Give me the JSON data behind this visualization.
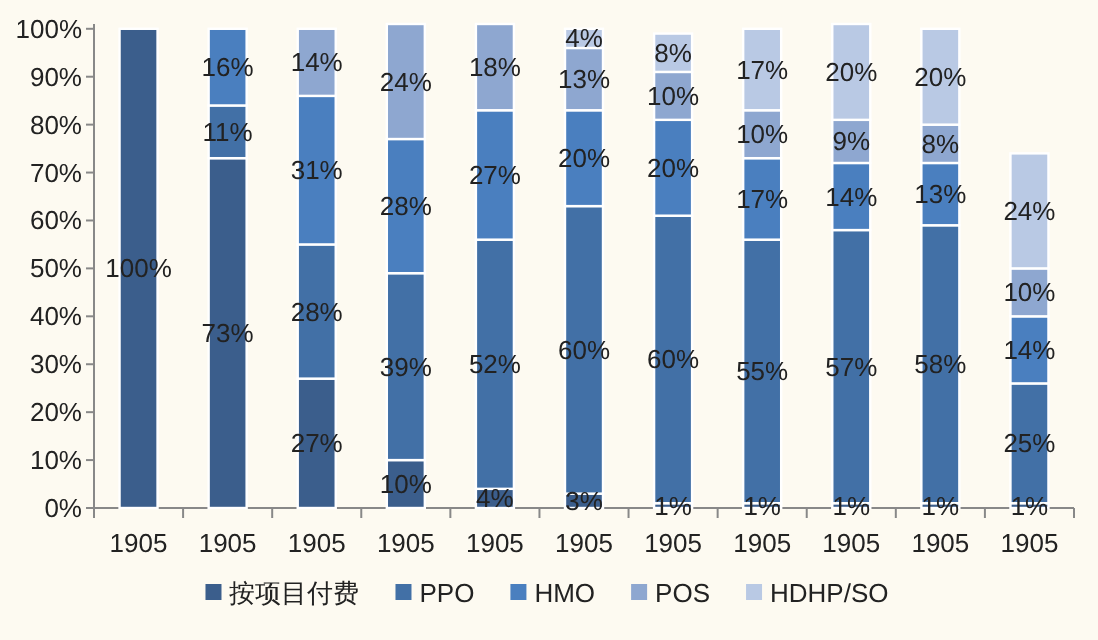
{
  "chart_data": {
    "type": "bar",
    "stacked": true,
    "categories": [
      "1905",
      "1905",
      "1905",
      "1905",
      "1905",
      "1905",
      "1905",
      "1905",
      "1905",
      "1905",
      "1905"
    ],
    "series": [
      {
        "name": "按项目付费",
        "color": "#3b5e8c",
        "values": [
          100,
          73,
          27,
          10,
          4,
          3,
          1,
          1,
          1,
          1,
          1
        ],
        "value_labels": [
          "100%",
          "73%",
          "27%",
          "10%",
          "4%",
          "3%",
          "1%",
          "1%",
          "1%",
          "1%",
          "1%"
        ]
      },
      {
        "name": "PPO",
        "color": "#4270a6",
        "values": [
          null,
          11,
          28,
          39,
          52,
          60,
          60,
          55,
          57,
          58,
          25
        ],
        "value_labels": [
          null,
          "11%",
          "28%",
          "39%",
          "52%",
          "60%",
          "60%",
          "55%",
          "57%",
          "58%",
          "25%"
        ]
      },
      {
        "name": "HMO",
        "color": "#4a7fbf",
        "values": [
          null,
          16,
          31,
          28,
          27,
          20,
          20,
          17,
          14,
          13,
          14
        ],
        "value_labels": [
          null,
          "16%",
          "31%",
          "28%",
          "27%",
          "20%",
          "20%",
          "17%",
          "14%",
          "13%",
          "14%"
        ]
      },
      {
        "name": "POS",
        "color": "#8ea7d0",
        "values": [
          null,
          null,
          14,
          24,
          18,
          13,
          10,
          10,
          9,
          8,
          10
        ],
        "value_labels": [
          null,
          null,
          "14%",
          "24%",
          "18%",
          "13%",
          "10%",
          "10%",
          "9%",
          "8%",
          "10%"
        ]
      },
      {
        "name": "HDHP/SO",
        "color": "#b9c9e4",
        "values": [
          null,
          null,
          null,
          null,
          null,
          4,
          8,
          17,
          20,
          20,
          24
        ],
        "value_labels": [
          null,
          null,
          null,
          null,
          null,
          "4%",
          "8%",
          "17%",
          "20%",
          "20%",
          "24%"
        ]
      }
    ],
    "ylim": [
      0,
      101
    ],
    "yticks": [
      {
        "value": 0,
        "label": "0%"
      },
      {
        "value": 10,
        "label": "10%"
      },
      {
        "value": 20,
        "label": "20%"
      },
      {
        "value": 30,
        "label": "30%"
      },
      {
        "value": 40,
        "label": "40%"
      },
      {
        "value": 50,
        "label": "50%"
      },
      {
        "value": 60,
        "label": "60%"
      },
      {
        "value": 70,
        "label": "70%"
      },
      {
        "value": 80,
        "label": "80%"
      },
      {
        "value": 90,
        "label": "90%"
      },
      {
        "value": 100,
        "label": "100%"
      }
    ],
    "grid": false,
    "legend": "bottom"
  }
}
